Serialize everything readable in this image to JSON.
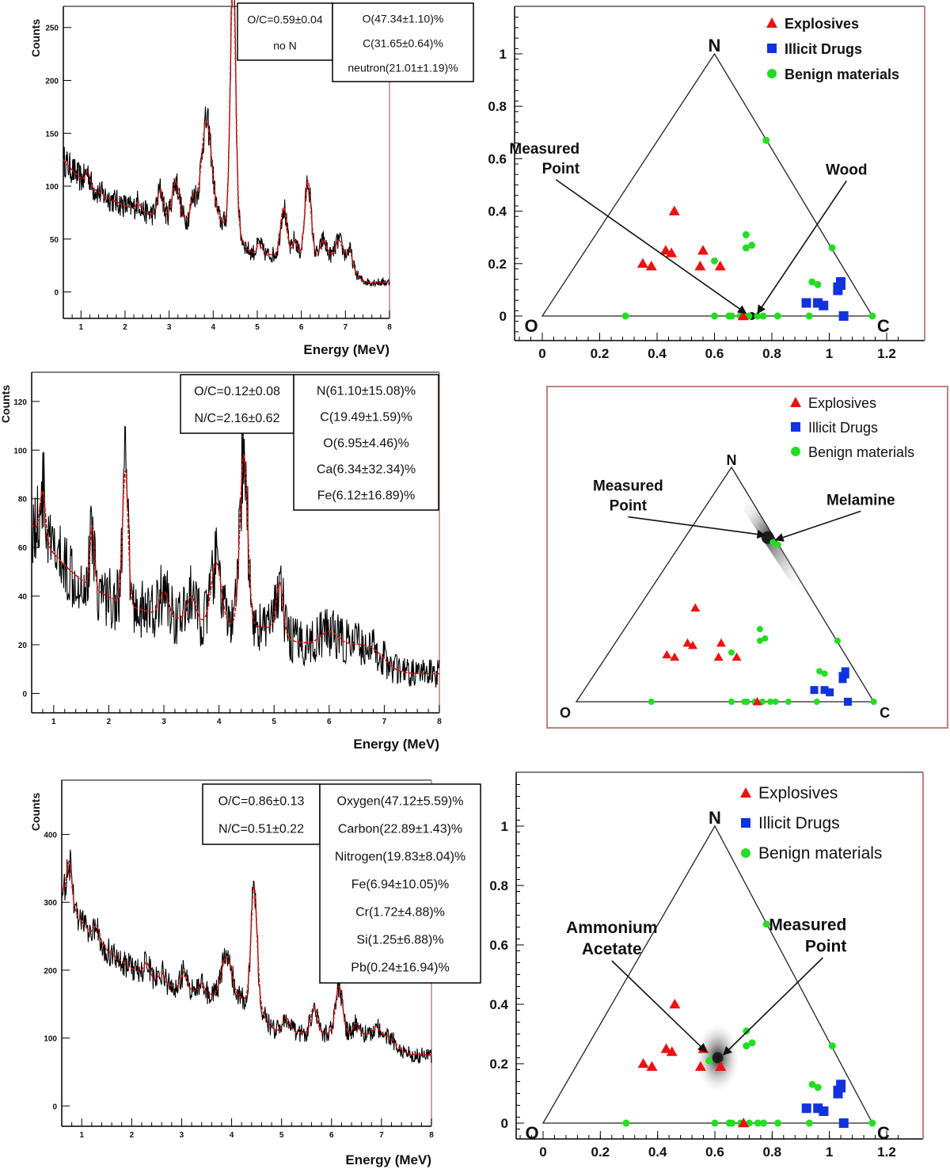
{
  "colors": {
    "spectrum": "#000000",
    "fit": "#e01010",
    "explosives": "#ee1111",
    "illicit": "#1133dd",
    "benign": "#22dd22",
    "frame_right": "#c08080"
  },
  "chart_data": [
    {
      "id": "spectrum1",
      "type": "line",
      "xlabel": "Energy (MeV)",
      "ylabel": "Counts",
      "xlim": [
        0.6,
        8.0
      ],
      "ylim": [
        -25,
        270
      ],
      "xticks": [
        1,
        2,
        3,
        4,
        5,
        6,
        7,
        8
      ],
      "yticks": [
        0,
        50,
        100,
        150,
        200,
        250
      ],
      "ytick_labels": [
        "0",
        "50",
        "100",
        "150",
        "200",
        "250"
      ],
      "baseline": {
        "start": 125,
        "slope": -80,
        "tail": 62
      },
      "peaks": [
        [
          1.15,
          12,
          0.05
        ],
        [
          2.3,
          8,
          0.05
        ],
        [
          2.8,
          25,
          0.06
        ],
        [
          3.15,
          35,
          0.08
        ],
        [
          3.55,
          20,
          0.06
        ],
        [
          3.85,
          95,
          0.12
        ],
        [
          4.45,
          240,
          0.06
        ],
        [
          5.05,
          10,
          0.06
        ],
        [
          5.6,
          45,
          0.07
        ],
        [
          5.85,
          15,
          0.05
        ],
        [
          6.15,
          70,
          0.07
        ],
        [
          6.5,
          15,
          0.06
        ],
        [
          6.85,
          15,
          0.07
        ],
        [
          7.1,
          10,
          0.05
        ]
      ],
      "edges": [
        [
          4.65,
          0.08,
          28
        ],
        [
          7.2,
          0.07,
          25
        ]
      ],
      "noise_amp": 12,
      "info_boxes": [
        {
          "lines": [
            "O/C=0.59±0.04",
            "no N"
          ]
        },
        {
          "lines": [
            "O(47.34±1.10)%",
            "C(31.65±0.64)%",
            "neutron(21.01±1.19)%"
          ]
        }
      ]
    },
    {
      "id": "spectrum2",
      "type": "line",
      "xlabel": "Energy (MeV)",
      "ylabel": "Counts",
      "xlim": [
        0.6,
        8.0
      ],
      "ylim": [
        -8,
        132
      ],
      "xticks": [
        1,
        2,
        3,
        4,
        5,
        6,
        7,
        8
      ],
      "yticks": [
        0,
        20,
        40,
        60,
        80,
        100,
        120
      ],
      "ytick_labels": [
        "0",
        "20",
        "40",
        "60",
        "80",
        "100",
        "120"
      ],
      "baseline": {
        "start": 70,
        "slope": -90,
        "tail": 26
      },
      "peaks": [
        [
          0.8,
          20,
          0.05
        ],
        [
          1.7,
          25,
          0.04
        ],
        [
          2.3,
          55,
          0.05
        ],
        [
          3.0,
          10,
          0.08
        ],
        [
          3.5,
          10,
          0.08
        ],
        [
          3.95,
          25,
          0.09
        ],
        [
          4.45,
          70,
          0.07
        ],
        [
          5.1,
          20,
          0.06
        ],
        [
          6.0,
          5,
          0.15
        ]
      ],
      "edges": [
        [
          5.2,
          0.08,
          6
        ],
        [
          7.0,
          0.12,
          12
        ]
      ],
      "noise_amp": 14,
      "info_boxes": [
        {
          "lines": [
            "O/C=0.12±0.08",
            "N/C=2.16±0.62"
          ]
        },
        {
          "lines": [
            "N(61.10±15.08)%",
            "C(19.49±1.59)%",
            "O(6.95±4.46)%",
            "Ca(6.34±32.34)%",
            "Fe(6.12±16.89)%"
          ]
        }
      ]
    },
    {
      "id": "spectrum3",
      "type": "line",
      "xlabel": "Energy (MeV)",
      "ylabel": "Counts",
      "xlim": [
        0.6,
        8.0
      ],
      "ylim": [
        -30,
        480
      ],
      "xticks": [
        1,
        2,
        3,
        4,
        5,
        6,
        7,
        8
      ],
      "yticks": [
        0,
        100,
        200,
        300,
        400
      ],
      "ytick_labels": [
        "0",
        "100",
        "200",
        "300",
        "400"
      ],
      "baseline": {
        "start": 320,
        "slope": -110,
        "tail": 150
      },
      "peaks": [
        [
          0.75,
          60,
          0.05
        ],
        [
          1.3,
          20,
          0.06
        ],
        [
          2.3,
          20,
          0.06
        ],
        [
          2.6,
          15,
          0.05
        ],
        [
          3.05,
          25,
          0.06
        ],
        [
          3.4,
          15,
          0.05
        ],
        [
          3.9,
          60,
          0.1
        ],
        [
          4.45,
          170,
          0.06
        ],
        [
          5.1,
          20,
          0.07
        ],
        [
          5.65,
          40,
          0.06
        ],
        [
          6.15,
          70,
          0.07
        ],
        [
          6.5,
          15,
          0.06
        ],
        [
          6.9,
          12,
          0.06
        ]
      ],
      "edges": [
        [
          4.65,
          0.08,
          45
        ],
        [
          7.3,
          0.08,
          30
        ]
      ],
      "noise_amp": 18,
      "info_boxes": [
        {
          "lines": [
            "O/C=0.86±0.13",
            "N/C=0.51±0.22"
          ]
        },
        {
          "lines": [
            "Oxygen(47.12±5.59)%",
            "Carbon(22.89±1.43)%",
            "Nitrogen(19.83±8.04)%",
            "Fe(6.94±10.05)%",
            "Cr(1.72±4.88)%",
            "Si(1.25±6.88)%",
            "Pb(0.24±16.94)%"
          ]
        }
      ]
    },
    {
      "id": "ternary1",
      "type": "scatter",
      "xlim": [
        -0.1,
        1.25
      ],
      "ylim": [
        -0.08,
        1.15
      ],
      "xticks": [
        0,
        0.2,
        0.4,
        0.6,
        0.8,
        1,
        1.2
      ],
      "xtick_labels": [
        "0",
        "0.2",
        "0.4",
        "0.6",
        "0.8",
        "1",
        "1.2"
      ],
      "yticks": [
        0,
        0.2,
        0.4,
        0.6,
        0.8,
        1
      ],
      "ytick_labels": [
        "0",
        "0.2",
        "0.4",
        "0.6",
        "0.8",
        "1"
      ],
      "vertex_labels": [
        "O",
        "N",
        "C"
      ],
      "legend": [
        "Explosives",
        "Illicit Drugs",
        "Benign materials"
      ],
      "explosives": [
        [
          0.35,
          0.2
        ],
        [
          0.38,
          0.19
        ],
        [
          0.43,
          0.25
        ],
        [
          0.45,
          0.24
        ],
        [
          0.46,
          0.4
        ],
        [
          0.55,
          0.19
        ],
        [
          0.56,
          0.25
        ],
        [
          0.62,
          0.19
        ],
        [
          0.7,
          0.0
        ]
      ],
      "illicit": [
        [
          0.92,
          0.05
        ],
        [
          0.96,
          0.05
        ],
        [
          0.98,
          0.04
        ],
        [
          1.03,
          0.11
        ],
        [
          1.04,
          0.13
        ],
        [
          1.05,
          0.0
        ]
      ],
      "benign": [
        [
          0.29,
          0.0
        ],
        [
          0.6,
          0.21
        ],
        [
          0.6,
          0.0
        ],
        [
          0.65,
          0.0
        ],
        [
          0.66,
          0.0
        ],
        [
          0.69,
          0.0
        ],
        [
          0.72,
          0.0
        ],
        [
          0.71,
          0.31
        ],
        [
          0.71,
          0.26
        ],
        [
          0.73,
          0.27
        ],
        [
          0.75,
          0.0
        ],
        [
          0.77,
          0.0
        ],
        [
          0.78,
          0.67
        ],
        [
          0.82,
          0.0
        ],
        [
          0.93,
          0.0
        ],
        [
          0.94,
          0.13
        ],
        [
          0.96,
          0.12
        ],
        [
          1.01,
          0.26
        ],
        [
          1.15,
          0.0
        ]
      ],
      "measured": [
        [
          0.73,
          0.0
        ]
      ],
      "annotations": [
        {
          "label": [
            "Measured",
            "Point"
          ],
          "text_x": 0.13,
          "text_y": 0.62,
          "target_x": 0.71,
          "target_y": 0.01,
          "anchor": "end"
        },
        {
          "label": [
            "Wood"
          ],
          "text_x": 1.06,
          "text_y": 0.54,
          "target_x": 0.75,
          "target_y": 0.01,
          "anchor": "middle"
        }
      ]
    },
    {
      "id": "ternary2",
      "type": "scatter",
      "xlim": [
        -0.1,
        1.25
      ],
      "ylim": [
        -0.08,
        1.15
      ],
      "vertex_labels": [
        "O",
        "N",
        "C"
      ],
      "legend": [
        "Explosives",
        "Illicit Drugs",
        "Benign materials"
      ],
      "explosives": [
        [
          0.35,
          0.2
        ],
        [
          0.38,
          0.19
        ],
        [
          0.43,
          0.25
        ],
        [
          0.45,
          0.24
        ],
        [
          0.46,
          0.4
        ],
        [
          0.55,
          0.19
        ],
        [
          0.56,
          0.25
        ],
        [
          0.62,
          0.19
        ],
        [
          0.7,
          0.0
        ]
      ],
      "illicit": [
        [
          0.92,
          0.05
        ],
        [
          0.96,
          0.05
        ],
        [
          0.98,
          0.04
        ],
        [
          1.03,
          0.11
        ],
        [
          1.04,
          0.13
        ],
        [
          1.05,
          0.0
        ]
      ],
      "benign": [
        [
          0.29,
          0.0
        ],
        [
          0.6,
          0.21
        ],
        [
          0.6,
          0.0
        ],
        [
          0.65,
          0.0
        ],
        [
          0.66,
          0.0
        ],
        [
          0.69,
          0.0
        ],
        [
          0.72,
          0.0
        ],
        [
          0.71,
          0.31
        ],
        [
          0.71,
          0.26
        ],
        [
          0.73,
          0.27
        ],
        [
          0.75,
          0.0
        ],
        [
          0.77,
          0.0
        ],
        [
          0.78,
          0.67
        ],
        [
          0.82,
          0.0
        ],
        [
          0.93,
          0.0
        ],
        [
          0.94,
          0.13
        ],
        [
          0.96,
          0.12
        ],
        [
          1.01,
          0.26
        ],
        [
          1.15,
          0.0
        ]
      ],
      "melamine": [
        0.76,
        0.68
      ],
      "measured": [
        [
          0.74,
          0.7
        ]
      ],
      "annotations": [
        {
          "label": [
            "Measured",
            "Point"
          ],
          "text_x": 0.2,
          "text_y": 0.9,
          "target_x": 0.73,
          "target_y": 0.71,
          "anchor": "middle"
        },
        {
          "label": [
            "Melamine"
          ],
          "text_x": 1.1,
          "text_y": 0.84,
          "target_x": 0.77,
          "target_y": 0.69,
          "anchor": "middle"
        }
      ]
    },
    {
      "id": "ternary3",
      "type": "scatter",
      "xlim": [
        -0.1,
        1.25
      ],
      "ylim": [
        -0.08,
        1.15
      ],
      "xticks": [
        0,
        0.2,
        0.4,
        0.6,
        0.8,
        1,
        1.2
      ],
      "xtick_labels": [
        "0",
        "0.2",
        "0.4",
        "0.6",
        "0.8",
        "1",
        "1.2"
      ],
      "yticks": [
        0,
        0.2,
        0.4,
        0.6,
        0.8,
        1
      ],
      "ytick_labels": [
        "0",
        "0.2",
        "0.4",
        "0.6",
        "0.8",
        "1"
      ],
      "vertex_labels": [
        "O",
        "N",
        "C"
      ],
      "legend": [
        "Explosives",
        "Illicit Drugs",
        "Benign materials"
      ],
      "explosives": [
        [
          0.35,
          0.2
        ],
        [
          0.38,
          0.19
        ],
        [
          0.43,
          0.25
        ],
        [
          0.45,
          0.24
        ],
        [
          0.46,
          0.4
        ],
        [
          0.55,
          0.19
        ],
        [
          0.56,
          0.25
        ],
        [
          0.62,
          0.19
        ],
        [
          0.7,
          0.0
        ]
      ],
      "illicit": [
        [
          0.92,
          0.05
        ],
        [
          0.96,
          0.05
        ],
        [
          0.98,
          0.04
        ],
        [
          1.03,
          0.11
        ],
        [
          1.04,
          0.13
        ],
        [
          1.05,
          0.0
        ]
      ],
      "benign": [
        [
          0.29,
          0.0
        ],
        [
          0.58,
          0.21
        ],
        [
          0.6,
          0.0
        ],
        [
          0.65,
          0.0
        ],
        [
          0.66,
          0.0
        ],
        [
          0.69,
          0.0
        ],
        [
          0.72,
          0.0
        ],
        [
          0.71,
          0.31
        ],
        [
          0.71,
          0.26
        ],
        [
          0.73,
          0.27
        ],
        [
          0.75,
          0.0
        ],
        [
          0.77,
          0.0
        ],
        [
          0.78,
          0.67
        ],
        [
          0.82,
          0.0
        ],
        [
          0.93,
          0.0
        ],
        [
          0.94,
          0.13
        ],
        [
          0.96,
          0.12
        ],
        [
          1.01,
          0.26
        ],
        [
          1.15,
          0.0
        ]
      ],
      "measured": [
        [
          0.61,
          0.22
        ]
      ],
      "annotations": [
        {
          "label": [
            "Ammonium",
            "Acetate"
          ],
          "text_x": 0.24,
          "text_y": 0.64,
          "target_x": 0.57,
          "target_y": 0.24,
          "anchor": "middle"
        },
        {
          "label": [
            "Measured",
            "Point"
          ],
          "text_x": 1.06,
          "text_y": 0.65,
          "target_x": 0.63,
          "target_y": 0.23,
          "anchor": "end"
        }
      ]
    }
  ]
}
